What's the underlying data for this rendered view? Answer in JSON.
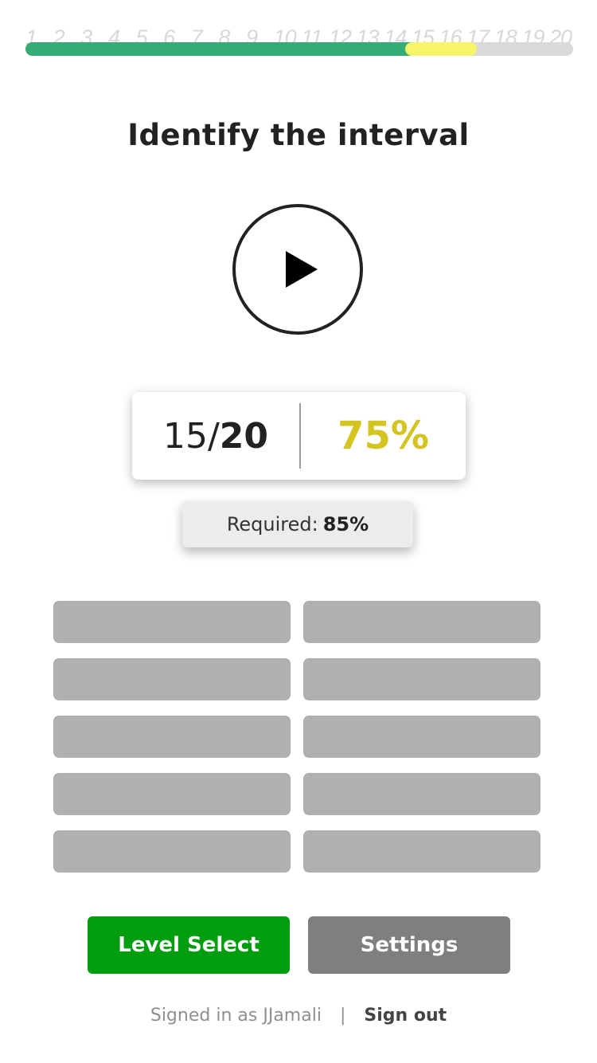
{
  "progress": {
    "steps": [
      "1",
      "2",
      "3",
      "4",
      "5",
      "6",
      "7",
      "8",
      "9",
      "10",
      "11",
      "12",
      "13",
      "14",
      "15",
      "16",
      "17",
      "18",
      "19",
      "20"
    ],
    "completed": 17,
    "current": 15,
    "total": 20,
    "colors": {
      "track": "#d9d9d9",
      "fill": "#34ad75",
      "current": "#f6f56a"
    }
  },
  "title": "Identify the interval",
  "play_icon": "play-icon",
  "score": {
    "correct": "15/",
    "total": "20",
    "percent": "75%",
    "percent_color": "#d3c420"
  },
  "required": {
    "label": "Required:",
    "value": "85%"
  },
  "answers": [
    "",
    "",
    "",
    "",
    "",
    "",
    "",
    "",
    "",
    ""
  ],
  "buttons": {
    "level_select": "Level Select",
    "settings": "Settings"
  },
  "footer": {
    "signed_in_label": "Signed in as",
    "username": "JJamali",
    "separator": "|",
    "sign_out": "Sign out"
  }
}
